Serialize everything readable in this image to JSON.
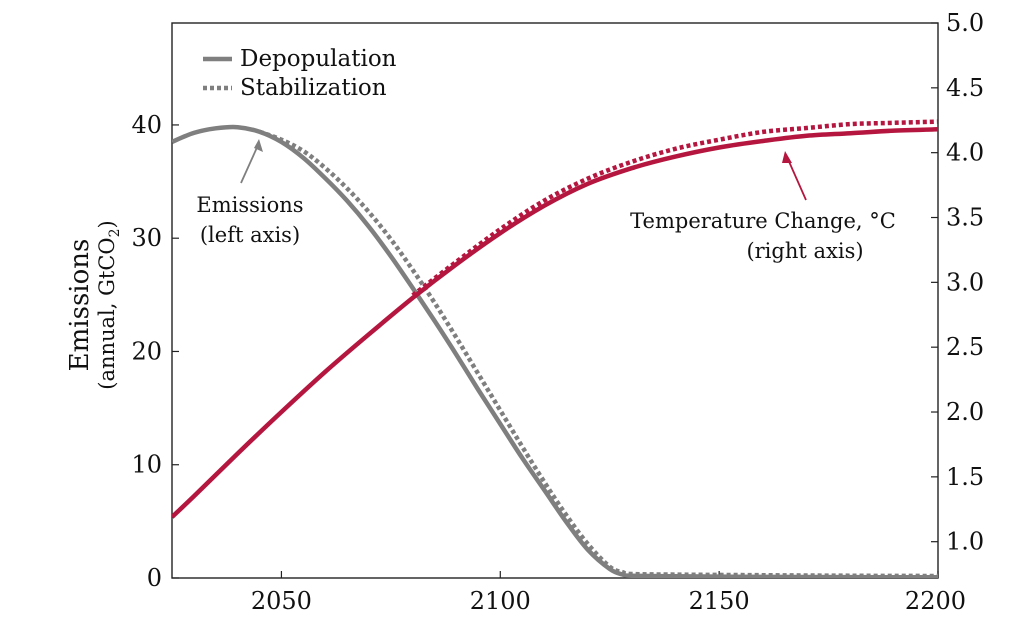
{
  "chart_data": {
    "type": "line",
    "title": "",
    "xlabel": "",
    "ylabel_left": "Emissions",
    "ylabel_left_sub": "(annual, GtCO",
    "ylabel_left_sub_subscript": "2",
    "ylabel_left_sub_close": ")",
    "ylabel_right": "",
    "xlim": [
      2025,
      2200
    ],
    "ylim_left": [
      0,
      49
    ],
    "ylim_right": [
      0.72,
      5.0
    ],
    "x_ticks": [
      2050,
      2100,
      2150,
      2200
    ],
    "x_tick_labels": [
      "2050",
      "2100",
      "2150",
      "2200"
    ],
    "y_left_ticks": [
      0,
      10,
      20,
      30,
      40
    ],
    "y_left_tick_labels": [
      "0",
      "10",
      "20",
      "30",
      "40"
    ],
    "y_right_ticks": [
      1.0,
      1.5,
      2.0,
      2.5,
      3.0,
      3.5,
      4.0,
      4.5,
      5.0
    ],
    "y_right_tick_labels": [
      "1.0",
      "1.5",
      "2.0",
      "2.5",
      "3.0",
      "3.5",
      "4.0",
      "4.5",
      "5.0"
    ],
    "grid": false,
    "legend": {
      "placement": "top-left",
      "entries": [
        {
          "label": "Depopulation",
          "style": "solid"
        },
        {
          "label": "Stabilization",
          "style": "dotted"
        }
      ]
    },
    "series": [
      {
        "name": "Depopulation",
        "quantity": "emissions",
        "axis": "left",
        "style": "solid",
        "color": "#7f7f7f",
        "x": [
          2025,
          2030,
          2035,
          2040,
          2045,
          2050,
          2055,
          2060,
          2065,
          2070,
          2075,
          2080,
          2085,
          2090,
          2095,
          2100,
          2105,
          2110,
          2115,
          2120,
          2125,
          2128,
          2130,
          2140,
          2160,
          2180,
          2200
        ],
        "y": [
          38.5,
          39.3,
          39.7,
          39.8,
          39.4,
          38.5,
          37.1,
          35.3,
          33.3,
          31.0,
          28.4,
          25.6,
          22.7,
          19.7,
          16.6,
          13.6,
          10.6,
          7.8,
          5.0,
          2.5,
          0.8,
          0.3,
          0.2,
          0.15,
          0.1,
          0.08,
          0.06
        ]
      },
      {
        "name": "Stabilization",
        "quantity": "emissions",
        "axis": "left",
        "style": "dotted",
        "color": "#7f7f7f",
        "x": [
          2045,
          2050,
          2055,
          2060,
          2065,
          2070,
          2075,
          2080,
          2085,
          2090,
          2095,
          2100,
          2105,
          2110,
          2115,
          2120,
          2125,
          2128,
          2130,
          2140,
          2160,
          2180,
          2200
        ],
        "y": [
          39.4,
          38.7,
          37.7,
          36.2,
          34.4,
          32.3,
          29.9,
          27.2,
          24.3,
          21.2,
          18.0,
          14.8,
          11.6,
          8.5,
          5.6,
          3.0,
          1.0,
          0.5,
          0.35,
          0.3,
          0.25,
          0.2,
          0.18
        ]
      },
      {
        "name": "Depopulation",
        "quantity": "temperature",
        "axis": "right",
        "style": "solid",
        "color": "#b5163f",
        "x": [
          2025,
          2030,
          2040,
          2050,
          2060,
          2070,
          2080,
          2090,
          2100,
          2110,
          2120,
          2130,
          2140,
          2150,
          2160,
          2170,
          2180,
          2190,
          2200
        ],
        "y": [
          1.19,
          1.35,
          1.68,
          2.0,
          2.31,
          2.6,
          2.88,
          3.14,
          3.38,
          3.59,
          3.76,
          3.88,
          3.97,
          4.04,
          4.09,
          4.13,
          4.15,
          4.17,
          4.18
        ]
      },
      {
        "name": "Stabilization",
        "quantity": "temperature",
        "axis": "right",
        "style": "dotted",
        "color": "#b5163f",
        "x": [
          2080,
          2090,
          2100,
          2110,
          2120,
          2130,
          2140,
          2150,
          2160,
          2170,
          2180,
          2190,
          2200
        ],
        "y": [
          2.9,
          3.16,
          3.41,
          3.63,
          3.8,
          3.93,
          4.03,
          4.1,
          4.16,
          4.19,
          4.22,
          4.23,
          4.24
        ]
      }
    ],
    "annotations": [
      {
        "lines": [
          "Emissions",
          "(left axis)"
        ],
        "points_to": {
          "x": 2044,
          "y_left": 39.3
        }
      },
      {
        "lines": [
          "Temperature Change, °C",
          "(right axis)"
        ],
        "points_to": {
          "x": 2162,
          "y_right": 4.05
        }
      }
    ],
    "colors": {
      "emissions": "#7f7f7f",
      "temperature": "#b5163f"
    }
  }
}
